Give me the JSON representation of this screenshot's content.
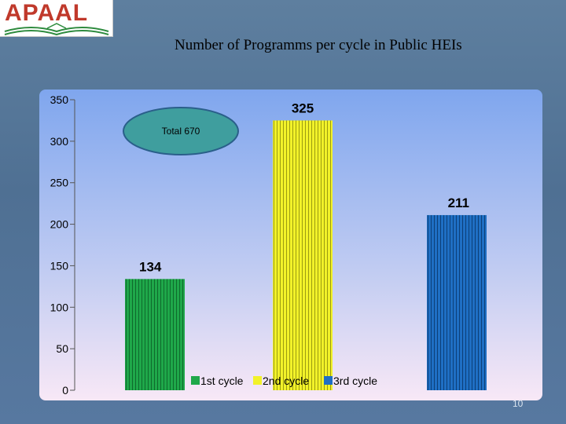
{
  "logo": {
    "text": "APAAL"
  },
  "page_number": "10",
  "chart_data": {
    "type": "bar",
    "title": "Number of Programms per cycle in Public HEIs",
    "categories": [
      "1st cycle",
      "2nd cycle",
      "3rd cycle"
    ],
    "values": [
      134,
      325,
      211
    ],
    "data_labels": [
      "134",
      "325",
      "211"
    ],
    "colors": [
      "#1fa84a",
      "#f2f229",
      "#1f6fc4"
    ],
    "ylim": [
      0,
      350
    ],
    "y_ticks": [
      0,
      50,
      100,
      150,
      200,
      250,
      300,
      350
    ],
    "legend": [
      "1st cycle",
      "2nd cycle",
      "3rd cycle"
    ],
    "legend_position": "bottom",
    "annotation": "Total 670",
    "annotation_color": "#3f9e9e",
    "xlabel": "",
    "ylabel": "",
    "grid": false
  }
}
